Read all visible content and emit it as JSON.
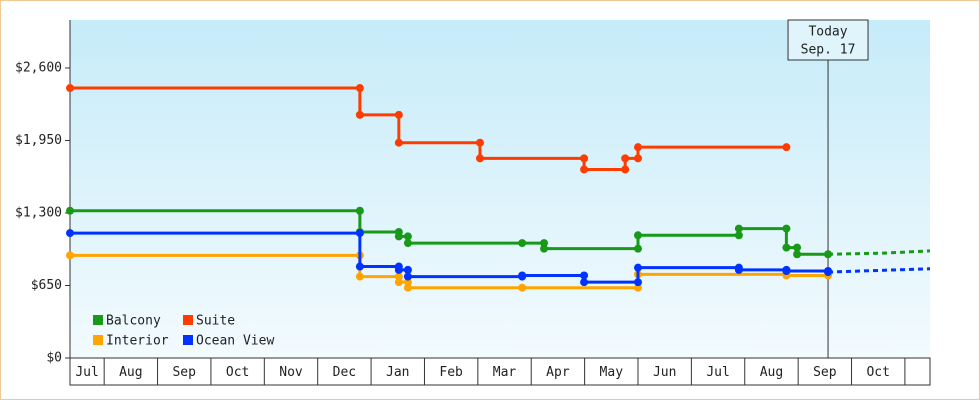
{
  "chart_data": {
    "type": "step-line",
    "categories": [
      "Jul",
      "Aug",
      "Sep",
      "Oct",
      "Nov",
      "Dec",
      "Jan",
      "Feb",
      "Mar",
      "Apr",
      "May",
      "Jun",
      "Jul",
      "Aug",
      "Sep",
      "Oct"
    ],
    "xlim": [
      0.36,
      16.47
    ],
    "ylim": [
      0,
      3030
    ],
    "yticks": [
      {
        "value": 0,
        "label": "$0"
      },
      {
        "value": 650,
        "label": "$650"
      },
      {
        "value": 1300,
        "label": "$1,300"
      },
      {
        "value": 1950,
        "label": "$1,950"
      },
      {
        "value": 2600,
        "label": "$2,600"
      }
    ],
    "today": {
      "x": 14.56,
      "label": [
        "Today",
        "Sep. 17"
      ]
    },
    "series": [
      {
        "name": "Balcony",
        "color": "#189a18",
        "x": [
          0.36,
          5.79,
          6.52,
          6.69,
          8.83,
          9.24,
          11.0,
          12.89,
          13.78,
          13.98,
          14.56
        ],
        "values": [
          1320,
          1130,
          1090,
          1030,
          1030,
          980,
          1100,
          1160,
          990,
          930,
          930
        ],
        "forecast": {
          "x": [
            14.56,
            15.6,
            16.47
          ],
          "values": [
            930,
            940,
            960
          ]
        }
      },
      {
        "name": "Suite",
        "color": "#ff3c00",
        "x": [
          0.36,
          5.79,
          6.52,
          8.04,
          9.99,
          10.76,
          11.0,
          13.78
        ],
        "values": [
          2420,
          2180,
          1930,
          1790,
          1690,
          1790,
          1890,
          1890
        ]
      },
      {
        "name": "Interior",
        "color": "#ffa500",
        "x": [
          0.36,
          5.79,
          6.52,
          6.69,
          8.83,
          11.0,
          13.78,
          14.56
        ],
        "values": [
          920,
          730,
          680,
          630,
          630,
          750,
          740,
          740
        ]
      },
      {
        "name": "Ocean View",
        "color": "#0033ff",
        "x": [
          0.36,
          5.79,
          6.52,
          6.69,
          8.83,
          9.99,
          11.0,
          12.89,
          13.78,
          14.56
        ],
        "values": [
          1120,
          820,
          790,
          730,
          740,
          680,
          810,
          790,
          780,
          770
        ],
        "forecast": {
          "x": [
            14.56,
            16.47
          ],
          "values": [
            770,
            800
          ]
        }
      }
    ]
  }
}
